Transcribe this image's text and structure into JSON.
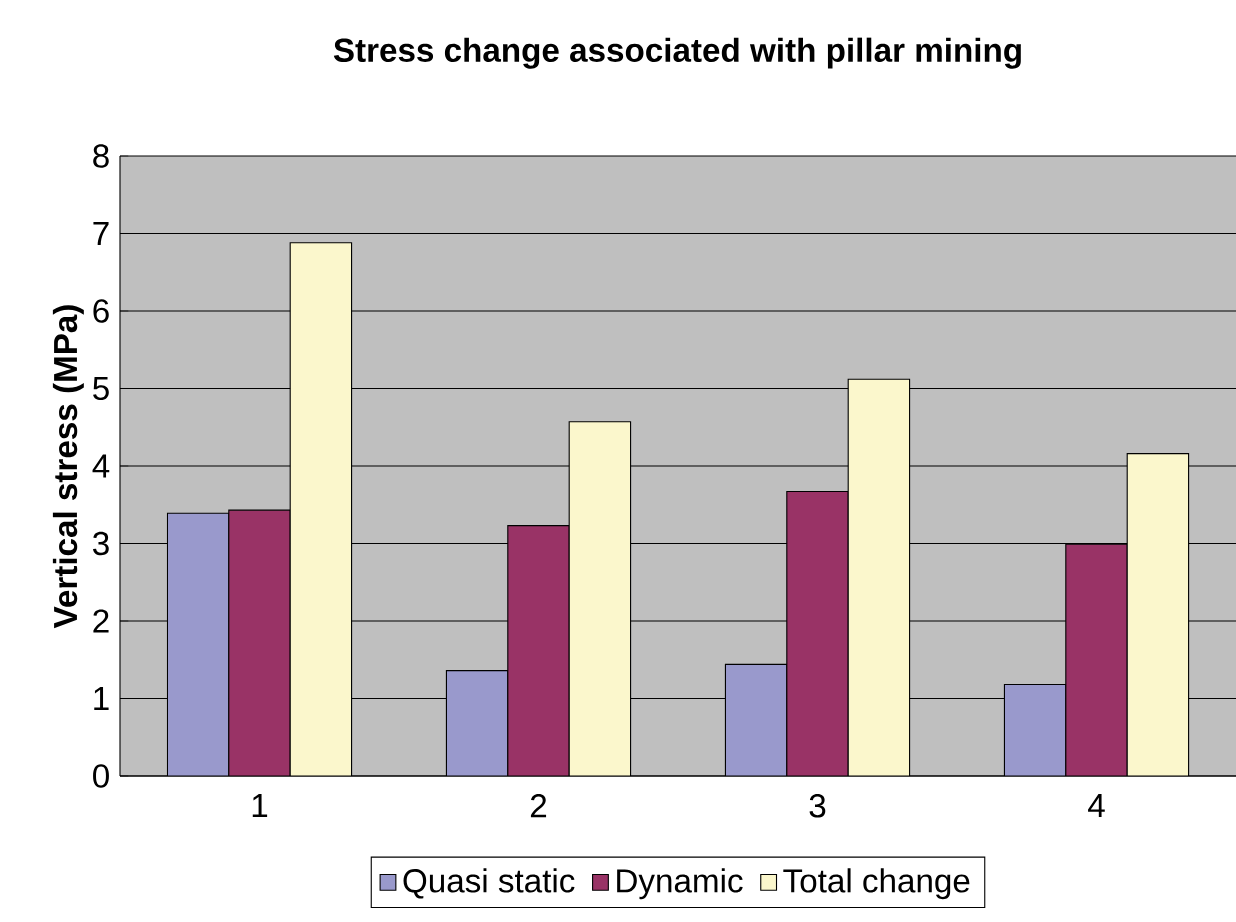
{
  "chart_data": {
    "type": "bar",
    "title": "Stress change associated with pillar mining",
    "ylabel": "Vertical stress (MPa)",
    "categories": [
      "1",
      "2",
      "3",
      "4"
    ],
    "series": [
      {
        "name": "Quasi static",
        "color": "#9999cc",
        "values": [
          3.39,
          1.36,
          1.44,
          1.18
        ]
      },
      {
        "name": "Dynamic",
        "color": "#993366",
        "values": [
          3.43,
          3.23,
          3.67,
          2.99
        ]
      },
      {
        "name": "Total change",
        "color": "#fbf7cc",
        "values": [
          6.88,
          4.57,
          5.12,
          4.16
        ]
      }
    ],
    "ylim": [
      0,
      8
    ],
    "yticks": [
      0,
      1,
      2,
      3,
      4,
      5,
      6,
      7,
      8
    ],
    "grid": "y",
    "legend": "bottom"
  }
}
